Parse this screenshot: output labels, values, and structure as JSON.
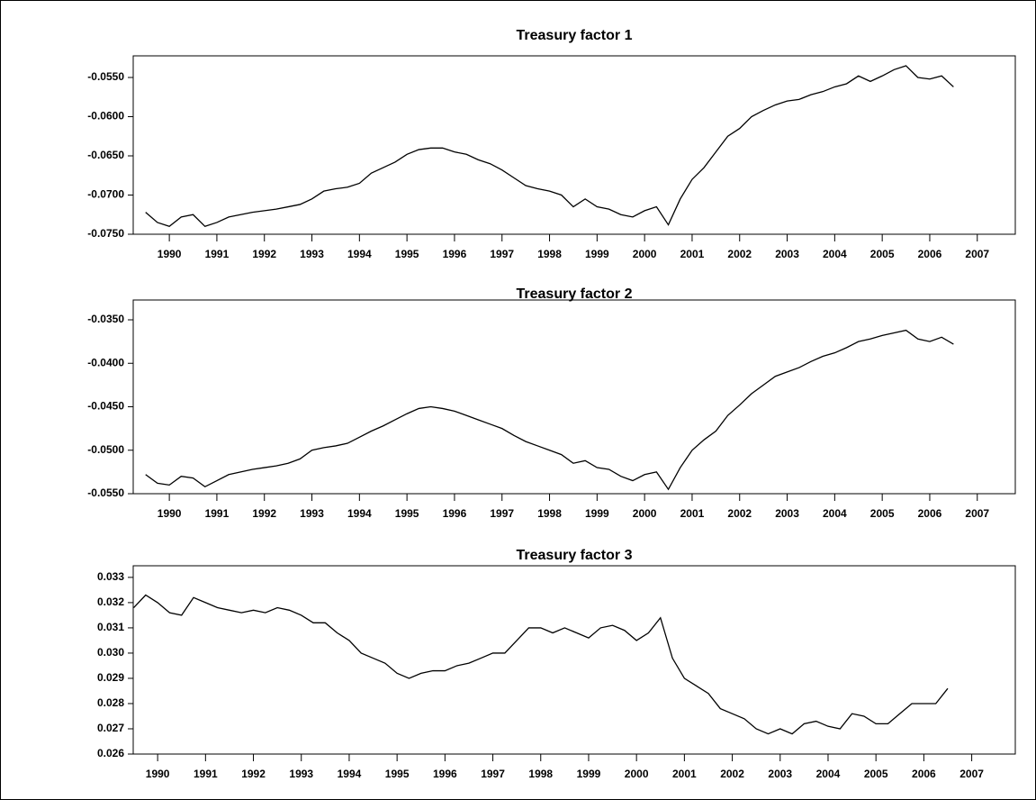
{
  "chart_data": [
    {
      "type": "line",
      "title": "Treasury factor 1",
      "color": "#000000",
      "x": [
        1990,
        1990.25,
        1990.5,
        1990.75,
        1991,
        1991.25,
        1991.5,
        1991.75,
        1992,
        1992.25,
        1992.5,
        1992.75,
        1993,
        1993.25,
        1993.5,
        1993.75,
        1994,
        1994.25,
        1994.5,
        1994.75,
        1995,
        1995.25,
        1995.5,
        1995.75,
        1996,
        1996.25,
        1996.5,
        1996.75,
        1997,
        1997.25,
        1997.5,
        1997.75,
        1998,
        1998.25,
        1998.5,
        1998.75,
        1999,
        1999.25,
        1999.5,
        1999.75,
        2000,
        2000.25,
        2000.5,
        2000.75,
        2001,
        2001.25,
        2001.5,
        2001.75,
        2002,
        2002.25,
        2002.5,
        2002.75,
        2003,
        2003.25,
        2003.5,
        2003.75,
        2004,
        2004.25,
        2004.5,
        2004.75,
        2005,
        2005.25,
        2005.5,
        2005.75,
        2006,
        2006.25,
        2006.5,
        2006.75,
        2007
      ],
      "values": [
        -0.0722,
        -0.0735,
        -0.074,
        -0.0728,
        -0.0725,
        -0.074,
        -0.0735,
        -0.0728,
        -0.0725,
        -0.0722,
        -0.072,
        -0.0718,
        -0.0715,
        -0.0712,
        -0.0705,
        -0.0695,
        -0.0692,
        -0.069,
        -0.0685,
        -0.0672,
        -0.0665,
        -0.0658,
        -0.0648,
        -0.0642,
        -0.064,
        -0.064,
        -0.0645,
        -0.0648,
        -0.0655,
        -0.066,
        -0.0668,
        -0.0678,
        -0.0688,
        -0.0692,
        -0.0695,
        -0.07,
        -0.0715,
        -0.0705,
        -0.0715,
        -0.0718,
        -0.0725,
        -0.0728,
        -0.072,
        -0.0715,
        -0.0738,
        -0.0705,
        -0.068,
        -0.0665,
        -0.0645,
        -0.0625,
        -0.0615,
        -0.06,
        -0.0592,
        -0.0585,
        -0.058,
        -0.0578,
        -0.0572,
        -0.0568,
        -0.0562,
        -0.0558,
        -0.0548,
        -0.0555,
        -0.0548,
        -0.054,
        -0.0535,
        -0.055,
        -0.0552,
        -0.0548,
        -0.0562
      ],
      "xlim": [
        1989.74,
        2008.3
      ],
      "xticks": [
        {
          "value": 1990.5,
          "label": "1990"
        },
        {
          "value": 1991.5,
          "label": "1991"
        },
        {
          "value": 1992.5,
          "label": "1992"
        },
        {
          "value": 1993.5,
          "label": "1993"
        },
        {
          "value": 1994.5,
          "label": "1994"
        },
        {
          "value": 1995.5,
          "label": "1995"
        },
        {
          "value": 1996.5,
          "label": "1996"
        },
        {
          "value": 1997.5,
          "label": "1997"
        },
        {
          "value": 1998.5,
          "label": "1998"
        },
        {
          "value": 1999.5,
          "label": "1999"
        },
        {
          "value": 2000.5,
          "label": "2000"
        },
        {
          "value": 2001.5,
          "label": "2001"
        },
        {
          "value": 2002.5,
          "label": "2002"
        },
        {
          "value": 2003.5,
          "label": "2003"
        },
        {
          "value": 2004.5,
          "label": "2004"
        },
        {
          "value": 2005.5,
          "label": "2005"
        },
        {
          "value": 2006.5,
          "label": "2006"
        },
        {
          "value": 2007.5,
          "label": "2007"
        }
      ],
      "ylim": [
        -0.075,
        -0.05224
      ],
      "yticks": [
        {
          "value": -0.055,
          "label": "-0.0550"
        },
        {
          "value": -0.06,
          "label": "-0.0600"
        },
        {
          "value": -0.065,
          "label": "-0.0650"
        },
        {
          "value": -0.07,
          "label": "-0.0700"
        },
        {
          "value": -0.075,
          "label": "-0.0750"
        }
      ]
    },
    {
      "type": "line",
      "title": "Treasury factor 2",
      "color": "#000000",
      "x": [
        1990,
        1990.25,
        1990.5,
        1990.75,
        1991,
        1991.25,
        1991.5,
        1991.75,
        1992,
        1992.25,
        1992.5,
        1992.75,
        1993,
        1993.25,
        1993.5,
        1993.75,
        1994,
        1994.25,
        1994.5,
        1994.75,
        1995,
        1995.25,
        1995.5,
        1995.75,
        1996,
        1996.25,
        1996.5,
        1996.75,
        1997,
        1997.25,
        1997.5,
        1997.75,
        1998,
        1998.25,
        1998.5,
        1998.75,
        1999,
        1999.25,
        1999.5,
        1999.75,
        2000,
        2000.25,
        2000.5,
        2000.75,
        2001,
        2001.25,
        2001.5,
        2001.75,
        2002,
        2002.25,
        2002.5,
        2002.75,
        2003,
        2003.25,
        2003.5,
        2003.75,
        2004,
        2004.25,
        2004.5,
        2004.75,
        2005,
        2005.25,
        2005.5,
        2005.75,
        2006,
        2006.25,
        2006.5,
        2006.75,
        2007
      ],
      "values": [
        -0.0528,
        -0.0538,
        -0.054,
        -0.053,
        -0.0532,
        -0.0542,
        -0.0535,
        -0.0528,
        -0.0525,
        -0.0522,
        -0.052,
        -0.0518,
        -0.0515,
        -0.051,
        -0.05,
        -0.0497,
        -0.0495,
        -0.0492,
        -0.0485,
        -0.0478,
        -0.0472,
        -0.0465,
        -0.0458,
        -0.0452,
        -0.045,
        -0.0452,
        -0.0455,
        -0.046,
        -0.0465,
        -0.047,
        -0.0475,
        -0.0483,
        -0.049,
        -0.0495,
        -0.05,
        -0.0505,
        -0.0515,
        -0.0512,
        -0.052,
        -0.0522,
        -0.053,
        -0.0535,
        -0.0528,
        -0.0525,
        -0.0545,
        -0.052,
        -0.05,
        -0.0488,
        -0.0478,
        -0.046,
        -0.0448,
        -0.0435,
        -0.0425,
        -0.0415,
        -0.041,
        -0.0405,
        -0.0398,
        -0.0392,
        -0.0388,
        -0.0382,
        -0.0375,
        -0.0372,
        -0.0368,
        -0.0365,
        -0.0362,
        -0.0372,
        -0.0375,
        -0.037,
        -0.0378
      ],
      "xlim": [
        1989.74,
        2008.3
      ],
      "xticks": [
        {
          "value": 1990.5,
          "label": "1990"
        },
        {
          "value": 1991.5,
          "label": "1991"
        },
        {
          "value": 1992.5,
          "label": "1992"
        },
        {
          "value": 1993.5,
          "label": "1993"
        },
        {
          "value": 1994.5,
          "label": "1994"
        },
        {
          "value": 1995.5,
          "label": "1995"
        },
        {
          "value": 1996.5,
          "label": "1996"
        },
        {
          "value": 1997.5,
          "label": "1997"
        },
        {
          "value": 1998.5,
          "label": "1998"
        },
        {
          "value": 1999.5,
          "label": "1999"
        },
        {
          "value": 2000.5,
          "label": "2000"
        },
        {
          "value": 2001.5,
          "label": "2001"
        },
        {
          "value": 2002.5,
          "label": "2002"
        },
        {
          "value": 2003.5,
          "label": "2003"
        },
        {
          "value": 2004.5,
          "label": "2004"
        },
        {
          "value": 2005.5,
          "label": "2005"
        },
        {
          "value": 2006.5,
          "label": "2006"
        },
        {
          "value": 2007.5,
          "label": "2007"
        }
      ],
      "ylim": [
        -0.055,
        -0.03272
      ],
      "yticks": [
        {
          "value": -0.035,
          "label": "-0.0350"
        },
        {
          "value": -0.04,
          "label": "-0.0400"
        },
        {
          "value": -0.045,
          "label": "-0.0450"
        },
        {
          "value": -0.05,
          "label": "-0.0500"
        },
        {
          "value": -0.055,
          "label": "-0.0550"
        }
      ]
    },
    {
      "type": "line",
      "title": "Treasury factor 3",
      "color": "#000000",
      "x": [
        1990,
        1990.25,
        1990.5,
        1990.75,
        1991,
        1991.25,
        1991.5,
        1991.75,
        1992,
        1992.25,
        1992.5,
        1992.75,
        1993,
        1993.25,
        1993.5,
        1993.75,
        1994,
        1994.25,
        1994.5,
        1994.75,
        1995,
        1995.25,
        1995.5,
        1995.75,
        1996,
        1996.25,
        1996.5,
        1996.75,
        1997,
        1997.25,
        1997.5,
        1997.75,
        1998,
        1998.25,
        1998.5,
        1998.75,
        1999,
        1999.25,
        1999.5,
        1999.75,
        2000,
        2000.25,
        2000.5,
        2000.75,
        2001,
        2001.25,
        2001.5,
        2001.75,
        2002,
        2002.25,
        2002.5,
        2002.75,
        2003,
        2003.25,
        2003.5,
        2003.75,
        2004,
        2004.25,
        2004.5,
        2004.75,
        2005,
        2005.25,
        2005.5,
        2005.75,
        2006,
        2006.25,
        2006.5,
        2006.75,
        2007
      ],
      "values": [
        0.0318,
        0.0323,
        0.032,
        0.0316,
        0.0315,
        0.0322,
        0.032,
        0.0318,
        0.0317,
        0.0316,
        0.0317,
        0.0316,
        0.0318,
        0.0317,
        0.0315,
        0.0312,
        0.0312,
        0.0308,
        0.0305,
        0.03,
        0.0298,
        0.0296,
        0.0292,
        0.029,
        0.0292,
        0.0293,
        0.0293,
        0.0295,
        0.0296,
        0.0298,
        0.03,
        0.03,
        0.0305,
        0.031,
        0.031,
        0.0308,
        0.031,
        0.0308,
        0.0306,
        0.031,
        0.0311,
        0.0309,
        0.0305,
        0.0308,
        0.0314,
        0.0298,
        0.029,
        0.0287,
        0.0284,
        0.0278,
        0.0276,
        0.0274,
        0.027,
        0.0268,
        0.027,
        0.0268,
        0.0272,
        0.0273,
        0.0271,
        0.027,
        0.0276,
        0.0275,
        0.0272,
        0.0272,
        0.0276,
        0.028,
        0.028,
        0.028,
        0.0286
      ],
      "xlim": [
        1989.99,
        2008.41
      ],
      "xticks": [
        {
          "value": 1990.5,
          "label": "1990"
        },
        {
          "value": 1991.5,
          "label": "1991"
        },
        {
          "value": 1992.5,
          "label": "1992"
        },
        {
          "value": 1993.5,
          "label": "1993"
        },
        {
          "value": 1994.5,
          "label": "1994"
        },
        {
          "value": 1995.5,
          "label": "1995"
        },
        {
          "value": 1996.5,
          "label": "1996"
        },
        {
          "value": 1997.5,
          "label": "1997"
        },
        {
          "value": 1998.5,
          "label": "1998"
        },
        {
          "value": 1999.5,
          "label": "1999"
        },
        {
          "value": 2000.5,
          "label": "2000"
        },
        {
          "value": 2001.5,
          "label": "2001"
        },
        {
          "value": 2002.5,
          "label": "2002"
        },
        {
          "value": 2003.5,
          "label": "2003"
        },
        {
          "value": 2004.5,
          "label": "2004"
        },
        {
          "value": 2005.5,
          "label": "2005"
        },
        {
          "value": 2006.5,
          "label": "2006"
        },
        {
          "value": 2007.5,
          "label": "2007"
        }
      ],
      "ylim": [
        0.026,
        0.03346
      ],
      "yticks": [
        0.033,
        0.032,
        0.031,
        {
          "value": 0.03,
          "label": "0.030"
        },
        0.029,
        0.028,
        0.027,
        0.026
      ]
    }
  ]
}
